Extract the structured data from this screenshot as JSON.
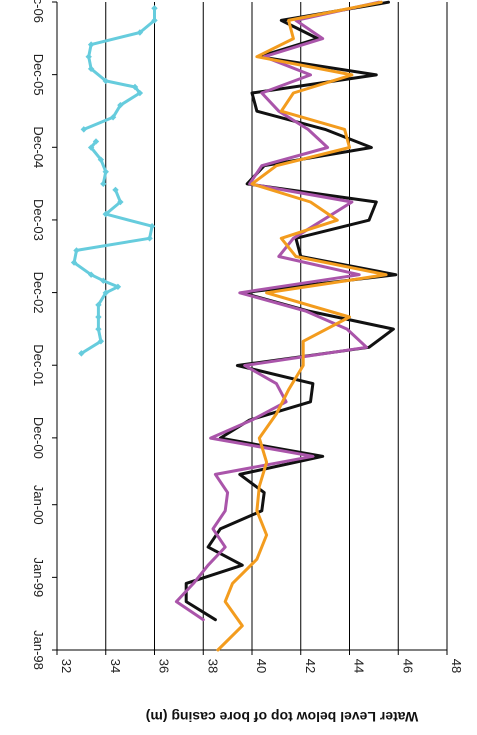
{
  "chart_data": {
    "type": "line",
    "orientation": "rotated-90-clockwise",
    "ylabel": "Water Level below top of bore casing (m)",
    "xlabel": "",
    "x_ticks": [
      "Jan-98",
      "Jan-99",
      "Jan-00",
      "Dec-00",
      "Dec-01",
      "Dec-02",
      "Dec-03",
      "Dec-04",
      "Dec-05",
      "Dec-06"
    ],
    "y_ticks": [
      "32",
      "34",
      "36",
      "38",
      "40",
      "42",
      "44",
      "46",
      "48"
    ],
    "ylim": [
      32,
      48
    ],
    "grid": true,
    "series": [
      {
        "color": "#66ccdd",
        "marker": "diamond",
        "x": [
          "2002-02",
          "2002-04",
          "2002-06",
          "2002-08",
          "2002-10",
          "2002-12",
          "2003-01",
          "2003-02",
          "2003-03",
          "2003-05",
          "2003-07",
          "2003-09",
          "2003-11",
          "2004-01",
          "2004-03",
          "2004-05",
          "2004-06",
          "2004-08",
          "2004-10",
          "2004-12",
          "2005-01",
          "2005-03",
          "2005-05",
          "2005-07",
          "2005-09",
          "2005-10",
          "2005-11",
          "2006-01",
          "2006-03",
          "2006-05",
          "2006-07",
          "2006-09",
          "2006-11"
        ],
        "values": [
          33.0,
          33.8,
          33.7,
          33.7,
          33.7,
          34.0,
          34.5,
          33.9,
          33.4,
          32.7,
          32.8,
          35.8,
          35.9,
          34.0,
          34.6,
          34.4,
          33.9,
          34.0,
          33.8,
          33.4,
          33.6,
          33.1,
          34.3,
          34.6,
          35.4,
          35.2,
          34.0,
          33.4,
          33.3,
          33.4,
          35.4,
          36.0,
          36.0
        ],
        "gap_after": [
          15,
          20
        ]
      },
      {
        "color": "#111111",
        "x": [
          "1998-06",
          "1998-09",
          "1998-12",
          "1999-03",
          "1999-06",
          "1999-09",
          "1999-12",
          "2000-03",
          "2000-06",
          "2000-09",
          "2000-12",
          "2001-03",
          "2001-06",
          "2001-09",
          "2001-12",
          "2002-03",
          "2002-06",
          "2002-09",
          "2002-12",
          "2003-03",
          "2003-06",
          "2003-09",
          "2003-12",
          "2004-03",
          "2004-06",
          "2004-09",
          "2004-12",
          "2005-03",
          "2005-06",
          "2005-09",
          "2005-12",
          "2006-03",
          "2006-06",
          "2006-09",
          "2006-12"
        ],
        "values": [
          38.5,
          37.3,
          37.3,
          39.6,
          38.2,
          38.7,
          40.4,
          40.5,
          39.5,
          42.9,
          38.7,
          39.9,
          42.4,
          42.5,
          39.4,
          44.8,
          45.8,
          42.3,
          39.6,
          45.9,
          42.0,
          41.8,
          44.8,
          45.1,
          39.8,
          40.5,
          44.9,
          43.0,
          40.2,
          40.0,
          45.1,
          40.3,
          42.7,
          41.2,
          45.6
        ]
      },
      {
        "color": "#aa55aa",
        "x": [
          "1998-06",
          "1998-09",
          "1998-12",
          "1999-03",
          "1999-06",
          "1999-09",
          "1999-12",
          "2000-03",
          "2000-06",
          "2000-09",
          "2000-12",
          "2001-03",
          "2001-06",
          "2001-09",
          "2001-12",
          "2002-03",
          "2002-06",
          "2002-09",
          "2002-12",
          "2003-03",
          "2003-06",
          "2003-09",
          "2003-12",
          "2004-03",
          "2004-06",
          "2004-09",
          "2004-12",
          "2005-03",
          "2005-06",
          "2005-09",
          "2005-12",
          "2006-03",
          "2006-06",
          "2006-09",
          "2006-12"
        ],
        "values": [
          38.0,
          36.9,
          37.6,
          38.2,
          38.9,
          38.4,
          38.9,
          39.0,
          38.5,
          42.5,
          38.3,
          40.0,
          41.4,
          41.0,
          39.7,
          44.7,
          43.9,
          42.2,
          39.5,
          44.4,
          41.1,
          41.7,
          42.9,
          44.1,
          39.9,
          40.4,
          43.1,
          42.3,
          41.1,
          40.4,
          42.4,
          40.5,
          42.9,
          41.8,
          45.2
        ]
      },
      {
        "color": "#f39c1e",
        "x": [
          "1998-01",
          "1998-05",
          "1998-09",
          "1998-12",
          "1999-04",
          "1999-08",
          "1999-12",
          "2000-04",
          "2000-08",
          "2000-12",
          "2001-04",
          "2001-08",
          "2001-12",
          "2002-04",
          "2002-08",
          "2002-12",
          "2003-03",
          "2003-06",
          "2003-09",
          "2003-12",
          "2004-03",
          "2004-06",
          "2004-09",
          "2004-12",
          "2005-03",
          "2005-06",
          "2005-09",
          "2005-12",
          "2006-03",
          "2006-06",
          "2006-09",
          "2006-12"
        ],
        "values": [
          38.6,
          39.6,
          38.9,
          39.2,
          40.2,
          40.6,
          40.2,
          40.3,
          40.6,
          40.3,
          41.0,
          41.5,
          42.1,
          42.1,
          44.0,
          40.6,
          45.5,
          41.8,
          41.2,
          43.5,
          42.4,
          40.0,
          41.0,
          44.0,
          43.8,
          41.2,
          41.7,
          44.1,
          40.2,
          41.7,
          41.5,
          45.3
        ]
      }
    ]
  }
}
